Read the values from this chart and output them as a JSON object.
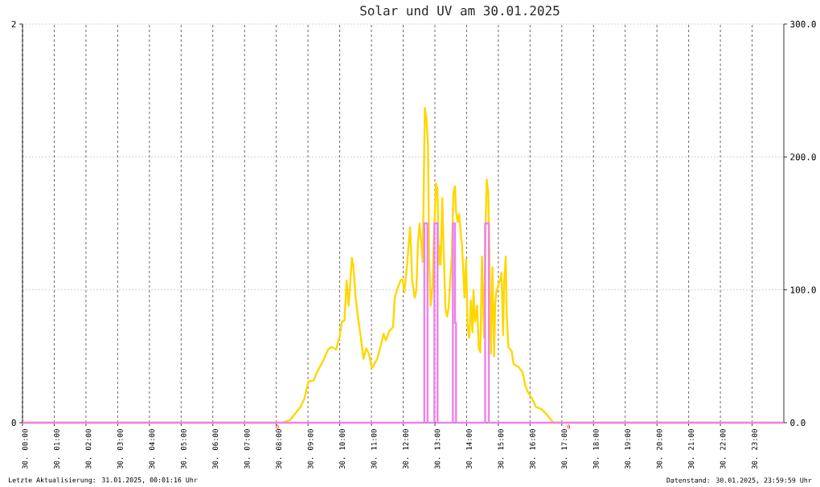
{
  "chart_data": {
    "type": "line",
    "title": "Solar und UV am 30.01.2025",
    "series": [
      {
        "color": "#ffd700",
        "axis": "y2",
        "x": [
          "2025-01-30T00:00",
          "2025-01-30T08:13",
          "2025-01-30T08:26",
          "2025-01-30T08:36",
          "2025-01-30T08:46",
          "2025-01-30T08:53",
          "2025-01-30T09:01",
          "2025-01-30T09:11",
          "2025-01-30T09:17",
          "2025-01-30T09:28",
          "2025-01-30T09:38",
          "2025-01-30T09:44",
          "2025-01-30T09:53",
          "2025-01-30T10:00",
          "2025-01-30T10:04",
          "2025-01-30T10:09",
          "2025-01-30T10:13",
          "2025-01-30T10:17",
          "2025-01-30T10:19",
          "2025-01-30T10:23",
          "2025-01-30T10:26",
          "2025-01-30T10:30",
          "2025-01-30T10:35",
          "2025-01-30T10:40",
          "2025-01-30T10:45",
          "2025-01-30T10:50",
          "2025-01-30T10:55",
          "2025-01-30T11:01",
          "2025-01-30T11:11",
          "2025-01-30T11:19",
          "2025-01-30T11:23",
          "2025-01-30T11:27",
          "2025-01-30T11:34",
          "2025-01-30T11:41",
          "2025-01-30T11:44",
          "2025-01-30T11:49",
          "2025-01-30T11:55",
          "2025-01-30T11:59",
          "2025-01-30T12:02",
          "2025-01-30T12:07",
          "2025-01-30T12:13",
          "2025-01-30T12:15",
          "2025-01-30T12:17",
          "2025-01-30T12:22",
          "2025-01-30T12:25",
          "2025-01-30T12:28",
          "2025-01-30T12:31",
          "2025-01-30T12:34",
          "2025-01-30T12:37",
          "2025-01-30T12:41",
          "2025-01-30T12:44",
          "2025-01-30T12:47",
          "2025-01-30T12:49",
          "2025-01-30T12:52",
          "2025-01-30T12:56",
          "2025-01-30T12:58",
          "2025-01-30T13:02",
          "2025-01-30T13:05",
          "2025-01-30T13:07",
          "2025-01-30T13:10",
          "2025-01-30T13:11",
          "2025-01-30T13:14",
          "2025-01-30T13:17",
          "2025-01-30T13:20",
          "2025-01-30T13:23",
          "2025-01-30T13:26",
          "2025-01-30T13:29",
          "2025-01-30T13:32",
          "2025-01-30T13:35",
          "2025-01-30T13:38",
          "2025-01-30T13:40",
          "2025-01-30T13:43",
          "2025-01-30T13:46",
          "2025-01-30T13:49",
          "2025-01-30T13:51",
          "2025-01-30T13:53",
          "2025-01-30T13:56",
          "2025-01-30T13:59",
          "2025-01-30T14:02",
          "2025-01-30T14:05",
          "2025-01-30T14:08",
          "2025-01-30T14:11",
          "2025-01-30T14:13",
          "2025-01-30T14:16",
          "2025-01-30T14:20",
          "2025-01-30T14:23",
          "2025-01-30T14:26",
          "2025-01-30T14:29",
          "2025-01-30T14:33",
          "2025-01-30T14:36",
          "2025-01-30T14:38",
          "2025-01-30T14:41",
          "2025-01-30T14:44",
          "2025-01-30T14:46",
          "2025-01-30T14:49",
          "2025-01-30T14:52",
          "2025-01-30T14:54",
          "2025-01-30T14:56",
          "2025-01-30T15:01",
          "2025-01-30T15:04",
          "2025-01-30T15:06",
          "2025-01-30T15:09",
          "2025-01-30T15:11",
          "2025-01-30T15:14",
          "2025-01-30T15:16",
          "2025-01-30T15:19",
          "2025-01-30T15:25",
          "2025-01-30T15:29",
          "2025-01-30T15:38",
          "2025-01-30T15:46",
          "2025-01-30T15:51",
          "2025-01-30T15:56",
          "2025-01-30T16:04",
          "2025-01-30T16:11",
          "2025-01-30T16:22",
          "2025-01-30T16:32",
          "2025-01-30T16:42",
          "2025-01-30T16:44",
          "2025-01-30T23:59"
        ],
        "values": [
          0,
          0,
          2,
          7,
          12,
          18,
          31,
          32,
          38,
          46,
          55,
          57,
          55,
          65,
          76,
          77,
          107,
          88,
          100,
          124,
          117,
          94,
          78,
          64,
          48,
          56,
          52,
          41,
          48,
          60,
          67,
          62,
          69,
          72,
          94,
          101,
          107,
          108,
          98,
          117,
          147,
          129,
          107,
          94,
          100,
          135,
          150,
          137,
          121,
          237,
          229,
          208,
          125,
          88,
          105,
          137,
          180,
          175,
          119,
          133,
          119,
          169,
          125,
          86,
          80,
          86,
          107,
          125,
          173,
          178,
          159,
          151,
          157,
          141,
          135,
          119,
          94,
          123,
          72,
          64,
          92,
          68,
          100,
          76,
          88,
          56,
          53,
          125,
          64,
          151,
          183,
          173,
          105,
          52,
          117,
          50,
          88,
          98,
          105,
          108,
          113,
          66,
          105,
          125,
          80,
          57,
          54,
          44,
          42,
          38,
          28,
          23,
          18,
          12,
          10,
          6,
          1,
          0,
          0
        ]
      },
      {
        "color": "#ee82ee",
        "x": [
          "2025-01-30T00:00",
          "2025-01-30T12:40",
          "2025-01-30T12:40",
          "2025-01-30T12:46",
          "2025-01-30T12:46",
          "2025-01-30T12:59",
          "2025-01-30T12:59",
          "2025-01-30T13:05",
          "2025-01-30T13:05",
          "2025-01-30T13:34",
          "2025-01-30T13:34",
          "2025-01-30T13:38",
          "2025-01-30T13:38",
          "2025-01-30T13:40",
          "2025-01-30T13:40",
          "2025-01-30T14:35",
          "2025-01-30T14:35",
          "2025-01-30T14:42",
          "2025-01-30T14:42",
          "2025-01-30T23:59"
        ],
        "values": [
          0,
          0,
          1,
          1,
          0,
          0,
          1,
          1,
          0,
          0,
          1,
          1,
          0.5,
          0.5,
          0,
          0,
          1,
          1,
          0,
          0
        ]
      }
    ],
    "xlim": [
      "2025-01-30T00:00",
      "2025-01-31T00:00"
    ],
    "xticks": [
      {
        "value": "2025-01-30T00:00",
        "label": "30. 00:00"
      },
      {
        "value": "2025-01-30T01:00",
        "label": "30. 01:00"
      },
      {
        "value": "2025-01-30T02:00",
        "label": "30. 02:00"
      },
      {
        "value": "2025-01-30T03:00",
        "label": "30. 03:00"
      },
      {
        "value": "2025-01-30T04:00",
        "label": "30. 04:00"
      },
      {
        "value": "2025-01-30T05:00",
        "label": "30. 05:00"
      },
      {
        "value": "2025-01-30T06:00",
        "label": "30. 06:00"
      },
      {
        "value": "2025-01-30T07:00",
        "label": "30. 07:00"
      },
      {
        "value": "2025-01-30T08:00",
        "label": "30. 08:00"
      },
      {
        "value": "2025-01-30T09:00",
        "label": "30. 09:00"
      },
      {
        "value": "2025-01-30T10:00",
        "label": "30. 10:00"
      },
      {
        "value": "2025-01-30T11:00",
        "label": "30. 11:00"
      },
      {
        "value": "2025-01-30T12:00",
        "label": "30. 12:00"
      },
      {
        "value": "2025-01-30T13:00",
        "label": "30. 13:00"
      },
      {
        "value": "2025-01-30T14:00",
        "label": "30. 14:00"
      },
      {
        "value": "2025-01-30T15:00",
        "label": "30. 15:00"
      },
      {
        "value": "2025-01-30T16:00",
        "label": "30. 16:00"
      },
      {
        "value": "2025-01-30T17:00",
        "label": "30. 17:00"
      },
      {
        "value": "2025-01-30T18:00",
        "label": "30. 18:00"
      },
      {
        "value": "2025-01-30T19:00",
        "label": "30. 19:00"
      },
      {
        "value": "2025-01-30T20:00",
        "label": "30. 20:00"
      },
      {
        "value": "2025-01-30T21:00",
        "label": "30. 21:00"
      },
      {
        "value": "2025-01-30T22:00",
        "label": "30. 22:00"
      },
      {
        "value": "2025-01-30T23:00",
        "label": "30. 23:00"
      }
    ],
    "ylim": [
      0,
      2
    ],
    "yticks": [
      0,
      2
    ],
    "y2lim": [
      0,
      300
    ],
    "y2ticks": [
      {
        "value": 0,
        "label": "0.0"
      },
      {
        "value": 100,
        "label": "100.0"
      },
      {
        "value": 200,
        "label": "200.0"
      },
      {
        "value": 300,
        "label": "300.0"
      }
    ],
    "grid": true,
    "annotations": [
      {
        "text": "0",
        "x": "2025-01-30T08:02",
        "y": 0
      },
      {
        "text": "0",
        "x": "2025-01-30T17:13",
        "y": 0
      },
      "Letzte Aktualisierung: 31.01.2025, 00:01:16 Uhr",
      "Datenstand: 30.01.2025, 23:59:59 Uhr"
    ]
  }
}
